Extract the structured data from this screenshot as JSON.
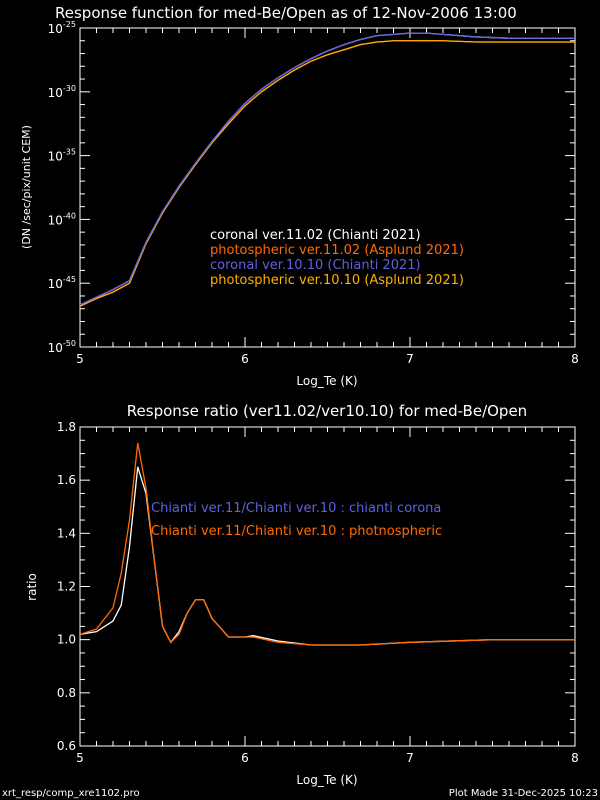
{
  "chart_data": [
    {
      "type": "line",
      "title": "Response function for med-Be/Open as of 12-Nov-2006 13:00",
      "xlabel": "Log_Te (K)",
      "ylabel": "(DN /sec/pix/unit CEM)",
      "xlim": [
        5,
        8
      ],
      "ylim": [
        1e-50,
        1e-25
      ],
      "yscale": "log",
      "xticks": [
        "5",
        "6",
        "7",
        "8"
      ],
      "yticks": [
        -25,
        -30,
        -35,
        -40,
        -45,
        -50
      ],
      "ytick_base": "10",
      "legend_placement": "center-right",
      "x": [
        5.0,
        5.1,
        5.2,
        5.3,
        5.4,
        5.5,
        5.6,
        5.7,
        5.8,
        5.9,
        6.0,
        6.1,
        6.2,
        6.3,
        6.4,
        6.5,
        6.6,
        6.7,
        6.8,
        6.9,
        7.0,
        7.1,
        7.2,
        7.4,
        7.6,
        7.8,
        8.0
      ],
      "series": [
        {
          "name": "coronal ver.11.02 (Chianti 2021)",
          "color": "#ffffff",
          "log_values": [
            -46.7,
            -46.1,
            -45.5,
            -44.8,
            -41.8,
            -39.4,
            -37.4,
            -35.6,
            -33.9,
            -32.3,
            -30.9,
            -29.8,
            -28.9,
            -28.1,
            -27.4,
            -26.8,
            -26.3,
            -25.9,
            -25.6,
            -25.5,
            -25.4,
            -25.4,
            -25.5,
            -25.7,
            -25.8,
            -25.8,
            -25.8
          ]
        },
        {
          "name": "photospheric ver.11.02 (Asplund 2021)",
          "color": "#ff6a00",
          "log_values": [
            -46.8,
            -46.2,
            -45.7,
            -45.0,
            -41.9,
            -39.5,
            -37.5,
            -35.7,
            -34.0,
            -32.5,
            -31.1,
            -30.0,
            -29.1,
            -28.3,
            -27.6,
            -27.1,
            -26.7,
            -26.3,
            -26.1,
            -26.0,
            -26.0,
            -26.0,
            -26.0,
            -26.1,
            -26.1,
            -26.1,
            -26.1
          ]
        },
        {
          "name": "coronal ver.10.10 (Chianti 2021)",
          "color": "#6060e0",
          "log_values": [
            -46.7,
            -46.1,
            -45.5,
            -44.8,
            -41.8,
            -39.4,
            -37.4,
            -35.6,
            -33.9,
            -32.3,
            -30.9,
            -29.8,
            -28.9,
            -28.1,
            -27.4,
            -26.8,
            -26.3,
            -25.9,
            -25.6,
            -25.5,
            -25.4,
            -25.4,
            -25.5,
            -25.7,
            -25.8,
            -25.8,
            -25.8
          ]
        },
        {
          "name": "photospheric ver.10.10 (Asplund 2021)",
          "color": "#ffb000",
          "log_values": [
            -46.8,
            -46.2,
            -45.7,
            -45.0,
            -41.9,
            -39.5,
            -37.5,
            -35.7,
            -34.0,
            -32.5,
            -31.1,
            -30.0,
            -29.1,
            -28.3,
            -27.6,
            -27.1,
            -26.7,
            -26.3,
            -26.1,
            -26.0,
            -26.0,
            -26.0,
            -26.0,
            -26.1,
            -26.1,
            -26.1,
            -26.1
          ]
        }
      ]
    },
    {
      "type": "line",
      "title": "Response ratio (ver11.02/ver10.10) for med-Be/Open",
      "xlabel": "Log_Te (K)",
      "ylabel": "ratio",
      "xlim": [
        5,
        8
      ],
      "ylim": [
        0.6,
        1.8
      ],
      "xticks": [
        "5",
        "6",
        "7",
        "8"
      ],
      "yticks": [
        "0.6",
        "0.8",
        "1.0",
        "1.2",
        "1.4",
        "1.6",
        "1.8"
      ],
      "legend_placement": "top-center",
      "x": [
        5.0,
        5.1,
        5.2,
        5.25,
        5.3,
        5.35,
        5.4,
        5.45,
        5.5,
        5.55,
        5.6,
        5.65,
        5.7,
        5.75,
        5.8,
        5.9,
        6.0,
        6.05,
        6.2,
        6.4,
        6.7,
        7.0,
        7.5,
        8.0
      ],
      "series": [
        {
          "name": "Chianti ver.11/Chianti ver.10 : chianti corona",
          "color": "#ffffff",
          "legend_color": "#6060e0",
          "values": [
            1.02,
            1.03,
            1.07,
            1.13,
            1.35,
            1.65,
            1.55,
            1.3,
            1.05,
            0.99,
            1.03,
            1.1,
            1.15,
            1.15,
            1.08,
            1.01,
            1.01,
            1.015,
            0.995,
            0.98,
            0.98,
            0.99,
            1.0,
            1.0
          ]
        },
        {
          "name": "Chianti ver.11/Chianti ver.10 : photnospheric",
          "color": "#ff6a00",
          "legend_color": "#ff6a00",
          "values": [
            1.02,
            1.04,
            1.12,
            1.25,
            1.45,
            1.74,
            1.57,
            1.3,
            1.05,
            0.99,
            1.02,
            1.1,
            1.15,
            1.15,
            1.08,
            1.01,
            1.01,
            1.01,
            0.99,
            0.98,
            0.98,
            0.99,
            1.0,
            1.0
          ]
        }
      ]
    }
  ],
  "footer": {
    "left": "xrt_resp/comp_xre1102.pro",
    "right": "Plot Made 31-Dec-2025 10:23"
  }
}
